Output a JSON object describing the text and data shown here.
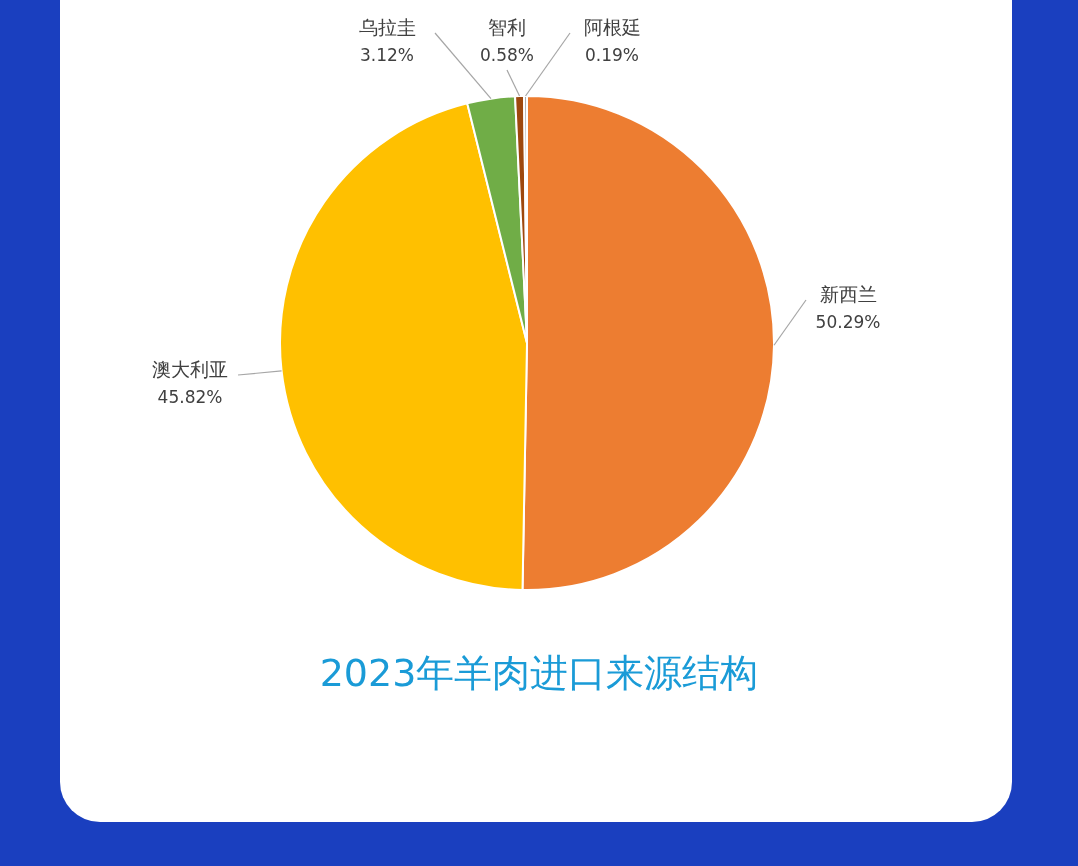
{
  "chart_data": {
    "type": "pie",
    "title": "2023年羊肉进口来源结构",
    "categories": [
      "新西兰",
      "澳大利亚",
      "乌拉圭",
      "智利",
      "阿根廷"
    ],
    "values": [
      50.29,
      45.82,
      3.12,
      0.58,
      0.19
    ],
    "value_labels": [
      "50.29%",
      "45.82%",
      "3.12%",
      "0.58%",
      "0.19%"
    ],
    "colors": [
      "#ed7d31",
      "#ffc000",
      "#70ad47",
      "#9e480e",
      "#a5a5a5"
    ],
    "legend": false
  }
}
